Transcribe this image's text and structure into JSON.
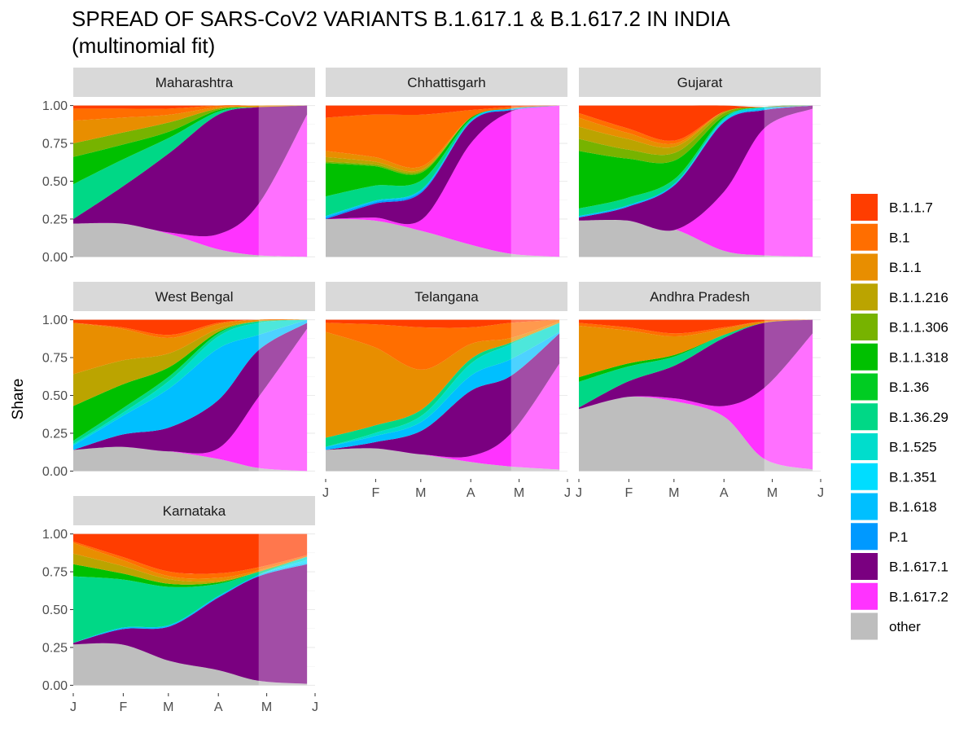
{
  "chart_data": {
    "type": "area",
    "stacked": "fill",
    "title": "SPREAD OF SARS-CoV2 VARIANTS B.1.617.1 & B.1.617.2 IN INDIA",
    "subtitle": "(multinomial fit)",
    "ylabel": "Share",
    "xlabel": "",
    "ylim": [
      0,
      1
    ],
    "yticks": [
      0,
      0.25,
      0.5,
      0.75,
      1
    ],
    "ytick_labels": [
      "0.00",
      "0.25",
      "0.50",
      "0.75",
      "1.00"
    ],
    "xlim": [
      0,
      150
    ],
    "xticks": [
      0,
      31,
      59,
      90,
      120,
      151
    ],
    "xtick_labels": [
      "J",
      "F",
      "M",
      "A",
      "M",
      "J"
    ],
    "projection_start": 115,
    "x": [
      0,
      30,
      60,
      90,
      115,
      145
    ],
    "legend_position": "right",
    "variants": [
      {
        "name": "B.1.1.7",
        "color": "#FF3D00"
      },
      {
        "name": "B.1",
        "color": "#FF6E00"
      },
      {
        "name": "B.1.1",
        "color": "#E88E00"
      },
      {
        "name": "B.1.1.216",
        "color": "#BBA400"
      },
      {
        "name": "B.1.1.306",
        "color": "#77B300"
      },
      {
        "name": "B.1.1.318",
        "color": "#00C000"
      },
      {
        "name": "B.1.36",
        "color": "#00CC22"
      },
      {
        "name": "B.1.36.29",
        "color": "#00D886"
      },
      {
        "name": "B.1.525",
        "color": "#00DDCC"
      },
      {
        "name": "B.1.351",
        "color": "#00DDFF"
      },
      {
        "name": "B.1.618",
        "color": "#00BFFF"
      },
      {
        "name": "P.1",
        "color": "#0099FF"
      },
      {
        "name": "B.1.617.1",
        "color": "#7A0080"
      },
      {
        "name": "B.1.617.2",
        "color": "#FF33FF"
      },
      {
        "name": "other",
        "color": "#BEBEBE"
      }
    ],
    "panels": [
      {
        "name": "Maharashtra",
        "series": {
          "B.1.1.7": [
            0.02,
            0.02,
            0.02,
            0.0,
            0.0,
            0.0
          ],
          "B.1": [
            0.08,
            0.06,
            0.04,
            0.01,
            0.0,
            0.0
          ],
          "B.1.1": [
            0.15,
            0.1,
            0.05,
            0.01,
            0.01,
            0.0
          ],
          "B.1.1.216": [
            0.0,
            0.0,
            0.0,
            0.0,
            0.0,
            0.0
          ],
          "B.1.1.306": [
            0.09,
            0.08,
            0.06,
            0.01,
            0.0,
            0.0
          ],
          "B.1.1.318": [
            0.18,
            0.1,
            0.04,
            0.01,
            0.0,
            0.0
          ],
          "B.1.36": [
            0.0,
            0.0,
            0.0,
            0.0,
            0.0,
            0.0
          ],
          "B.1.36.29": [
            0.23,
            0.18,
            0.1,
            0.02,
            0.0,
            0.0
          ],
          "B.1.525": [
            0.0,
            0.0,
            0.0,
            0.0,
            0.0,
            0.0
          ],
          "B.1.351": [
            0.0,
            0.0,
            0.0,
            0.0,
            0.0,
            0.0
          ],
          "B.1.618": [
            0.0,
            0.0,
            0.0,
            0.0,
            0.0,
            0.0
          ],
          "P.1": [
            0.0,
            0.0,
            0.0,
            0.0,
            0.0,
            0.0
          ],
          "B.1.617.1": [
            0.03,
            0.24,
            0.53,
            0.79,
            0.64,
            0.06
          ],
          "B.1.617.2": [
            0.0,
            0.0,
            0.01,
            0.1,
            0.34,
            0.94
          ],
          "other": [
            0.22,
            0.22,
            0.15,
            0.05,
            0.01,
            0.0
          ]
        }
      },
      {
        "name": "Chhattisgarh",
        "series": {
          "B.1.1.7": [
            0.08,
            0.06,
            0.06,
            0.03,
            0.01,
            0.0
          ],
          "B.1": [
            0.22,
            0.28,
            0.34,
            0.05,
            0.01,
            0.0
          ],
          "B.1.1": [
            0.04,
            0.03,
            0.02,
            0.0,
            0.0,
            0.0
          ],
          "B.1.1.216": [
            0.03,
            0.02,
            0.01,
            0.0,
            0.0,
            0.0
          ],
          "B.1.1.306": [
            0.01,
            0.01,
            0.01,
            0.0,
            0.0,
            0.0
          ],
          "B.1.1.318": [
            0.22,
            0.13,
            0.05,
            0.01,
            0.0,
            0.0
          ],
          "B.1.36": [
            0.0,
            0.0,
            0.0,
            0.0,
            0.0,
            0.0
          ],
          "B.1.36.29": [
            0.13,
            0.1,
            0.06,
            0.01,
            0.0,
            0.0
          ],
          "B.1.525": [
            0.0,
            0.0,
            0.0,
            0.0,
            0.0,
            0.0
          ],
          "B.1.351": [
            0.0,
            0.0,
            0.0,
            0.0,
            0.0,
            0.0
          ],
          "B.1.618": [
            0.01,
            0.01,
            0.01,
            0.01,
            0.01,
            0.0
          ],
          "P.1": [
            0.01,
            0.01,
            0.01,
            0.0,
            0.0,
            0.0
          ],
          "B.1.617.1": [
            0.0,
            0.09,
            0.18,
            0.14,
            0.01,
            0.0
          ],
          "B.1.617.2": [
            0.0,
            0.02,
            0.08,
            0.67,
            0.94,
            1.0
          ],
          "other": [
            0.25,
            0.24,
            0.17,
            0.08,
            0.02,
            0.0
          ]
        }
      },
      {
        "name": "Gujarat",
        "series": {
          "B.1.1.7": [
            0.05,
            0.15,
            0.23,
            0.04,
            0.0,
            0.0
          ],
          "B.1": [
            0.03,
            0.03,
            0.02,
            0.0,
            0.0,
            0.0
          ],
          "B.1.1": [
            0.06,
            0.04,
            0.02,
            0.0,
            0.0,
            0.0
          ],
          "B.1.1.216": [
            0.08,
            0.07,
            0.04,
            0.01,
            0.0,
            0.0
          ],
          "B.1.1.306": [
            0.08,
            0.06,
            0.05,
            0.02,
            0.0,
            0.0
          ],
          "B.1.1.318": [
            0.38,
            0.26,
            0.12,
            0.01,
            0.0,
            0.0
          ],
          "B.1.36": [
            0.0,
            0.0,
            0.0,
            0.0,
            0.0,
            0.0
          ],
          "B.1.36.29": [
            0.05,
            0.05,
            0.03,
            0.01,
            0.0,
            0.0
          ],
          "B.1.525": [
            0.0,
            0.0,
            0.0,
            0.01,
            0.01,
            0.0
          ],
          "B.1.351": [
            0.0,
            0.0,
            0.0,
            0.0,
            0.0,
            0.0
          ],
          "B.1.618": [
            0.01,
            0.01,
            0.01,
            0.01,
            0.01,
            0.0
          ],
          "P.1": [
            0.0,
            0.0,
            0.0,
            0.0,
            0.0,
            0.0
          ],
          "B.1.617.1": [
            0.02,
            0.09,
            0.3,
            0.46,
            0.12,
            0.02
          ],
          "B.1.617.2": [
            0.0,
            0.0,
            0.0,
            0.39,
            0.84,
            0.98
          ],
          "other": [
            0.24,
            0.24,
            0.18,
            0.04,
            0.01,
            0.0
          ]
        }
      },
      {
        "name": "West Bengal",
        "series": {
          "B.1.1.7": [
            0.02,
            0.05,
            0.1,
            0.02,
            0.0,
            0.0
          ],
          "B.1": [
            0.0,
            0.01,
            0.02,
            0.01,
            0.0,
            0.0
          ],
          "B.1.1": [
            0.34,
            0.21,
            0.1,
            0.03,
            0.01,
            0.0
          ],
          "B.1.1.216": [
            0.21,
            0.16,
            0.09,
            0.02,
            0.0,
            0.0
          ],
          "B.1.1.306": [
            0.0,
            0.0,
            0.0,
            0.0,
            0.0,
            0.0
          ],
          "B.1.1.318": [
            0.23,
            0.16,
            0.06,
            0.01,
            0.0,
            0.0
          ],
          "B.1.36": [
            0.0,
            0.0,
            0.0,
            0.0,
            0.0,
            0.0
          ],
          "B.1.36.29": [
            0.02,
            0.03,
            0.03,
            0.02,
            0.01,
            0.0
          ],
          "B.1.525": [
            0.01,
            0.02,
            0.05,
            0.08,
            0.08,
            0.0
          ],
          "B.1.351": [
            0.0,
            0.0,
            0.0,
            0.0,
            0.0,
            0.0
          ],
          "B.1.618": [
            0.03,
            0.12,
            0.26,
            0.34,
            0.1,
            0.02
          ],
          "P.1": [
            0.0,
            0.0,
            0.0,
            0.0,
            0.0,
            0.0
          ],
          "B.1.617.1": [
            0.0,
            0.08,
            0.16,
            0.32,
            0.31,
            0.04
          ],
          "B.1.617.2": [
            0.0,
            0.0,
            0.0,
            0.07,
            0.47,
            0.94
          ],
          "other": [
            0.14,
            0.16,
            0.13,
            0.08,
            0.02,
            0.0
          ]
        }
      },
      {
        "name": "Telangana",
        "series": {
          "B.1.1.7": [
            0.02,
            0.03,
            0.05,
            0.05,
            0.02,
            0.0
          ],
          "B.1": [
            0.06,
            0.15,
            0.28,
            0.11,
            0.1,
            0.01
          ],
          "B.1.1": [
            0.7,
            0.52,
            0.26,
            0.1,
            0.03,
            0.01
          ],
          "B.1.1.216": [
            0.0,
            0.0,
            0.0,
            0.0,
            0.0,
            0.0
          ],
          "B.1.1.306": [
            0.0,
            0.0,
            0.0,
            0.0,
            0.0,
            0.0
          ],
          "B.1.1.318": [
            0.0,
            0.0,
            0.0,
            0.0,
            0.0,
            0.0
          ],
          "B.1.36": [
            0.0,
            0.0,
            0.0,
            0.0,
            0.0,
            0.0
          ],
          "B.1.36.29": [
            0.06,
            0.05,
            0.04,
            0.03,
            0.01,
            0.0
          ],
          "B.1.525": [
            0.0,
            0.02,
            0.04,
            0.08,
            0.1,
            0.06
          ],
          "B.1.351": [
            0.0,
            0.0,
            0.0,
            0.0,
            0.0,
            0.0
          ],
          "B.1.618": [
            0.02,
            0.04,
            0.06,
            0.1,
            0.11,
            0.01
          ],
          "P.1": [
            0.0,
            0.0,
            0.0,
            0.0,
            0.0,
            0.0
          ],
          "B.1.617.1": [
            0.0,
            0.04,
            0.16,
            0.43,
            0.38,
            0.2
          ],
          "B.1.617.2": [
            0.0,
            0.0,
            0.0,
            0.04,
            0.22,
            0.7
          ],
          "other": [
            0.14,
            0.15,
            0.11,
            0.06,
            0.03,
            0.01
          ]
        }
      },
      {
        "name": "Andhra Pradesh",
        "series": {
          "B.1.1.7": [
            0.02,
            0.05,
            0.09,
            0.05,
            0.01,
            0.0
          ],
          "B.1": [
            0.02,
            0.02,
            0.02,
            0.01,
            0.0,
            0.0
          ],
          "B.1.1": [
            0.34,
            0.22,
            0.12,
            0.04,
            0.01,
            0.0
          ],
          "B.1.1.216": [
            0.0,
            0.0,
            0.0,
            0.0,
            0.0,
            0.0
          ],
          "B.1.1.306": [
            0.0,
            0.0,
            0.0,
            0.0,
            0.0,
            0.0
          ],
          "B.1.1.318": [
            0.03,
            0.02,
            0.01,
            0.0,
            0.0,
            0.0
          ],
          "B.1.36": [
            0.0,
            0.0,
            0.0,
            0.0,
            0.0,
            0.0
          ],
          "B.1.36.29": [
            0.17,
            0.1,
            0.06,
            0.02,
            0.0,
            0.0
          ],
          "B.1.525": [
            0.0,
            0.0,
            0.0,
            0.0,
            0.0,
            0.0
          ],
          "B.1.351": [
            0.0,
            0.0,
            0.0,
            0.0,
            0.0,
            0.0
          ],
          "B.1.618": [
            0.0,
            0.0,
            0.0,
            0.0,
            0.0,
            0.0
          ],
          "P.1": [
            0.0,
            0.0,
            0.0,
            0.0,
            0.0,
            0.0
          ],
          "B.1.617.1": [
            0.01,
            0.1,
            0.22,
            0.45,
            0.43,
            0.09
          ],
          "B.1.617.2": [
            0.0,
            0.0,
            0.02,
            0.07,
            0.47,
            0.9
          ],
          "other": [
            0.41,
            0.49,
            0.46,
            0.36,
            0.08,
            0.01
          ]
        }
      },
      {
        "name": "Karnataka",
        "series": {
          "B.1.1.7": [
            0.05,
            0.15,
            0.25,
            0.26,
            0.22,
            0.14
          ],
          "B.1": [
            0.01,
            0.02,
            0.03,
            0.03,
            0.02,
            0.01
          ],
          "B.1.1": [
            0.07,
            0.04,
            0.02,
            0.02,
            0.01,
            0.0
          ],
          "B.1.1.216": [
            0.07,
            0.05,
            0.03,
            0.01,
            0.0,
            0.0
          ],
          "B.1.1.306": [
            0.0,
            0.0,
            0.0,
            0.0,
            0.0,
            0.0
          ],
          "B.1.1.318": [
            0.08,
            0.04,
            0.02,
            0.01,
            0.0,
            0.0
          ],
          "B.1.36": [
            0.0,
            0.0,
            0.0,
            0.0,
            0.0,
            0.0
          ],
          "B.1.36.29": [
            0.44,
            0.32,
            0.25,
            0.08,
            0.02,
            0.0
          ],
          "B.1.525": [
            0.0,
            0.0,
            0.0,
            0.0,
            0.0,
            0.02
          ],
          "B.1.351": [
            0.0,
            0.0,
            0.0,
            0.0,
            0.0,
            0.02
          ],
          "B.1.618": [
            0.0,
            0.01,
            0.01,
            0.01,
            0.01,
            0.01
          ],
          "P.1": [
            0.0,
            0.0,
            0.0,
            0.0,
            0.0,
            0.0
          ],
          "B.1.617.1": [
            0.01,
            0.1,
            0.23,
            0.48,
            0.69,
            0.79
          ],
          "B.1.617.2": [
            0.0,
            0.0,
            0.0,
            0.0,
            0.0,
            0.0
          ],
          "other": [
            0.27,
            0.27,
            0.16,
            0.1,
            0.03,
            0.01
          ]
        }
      }
    ]
  }
}
